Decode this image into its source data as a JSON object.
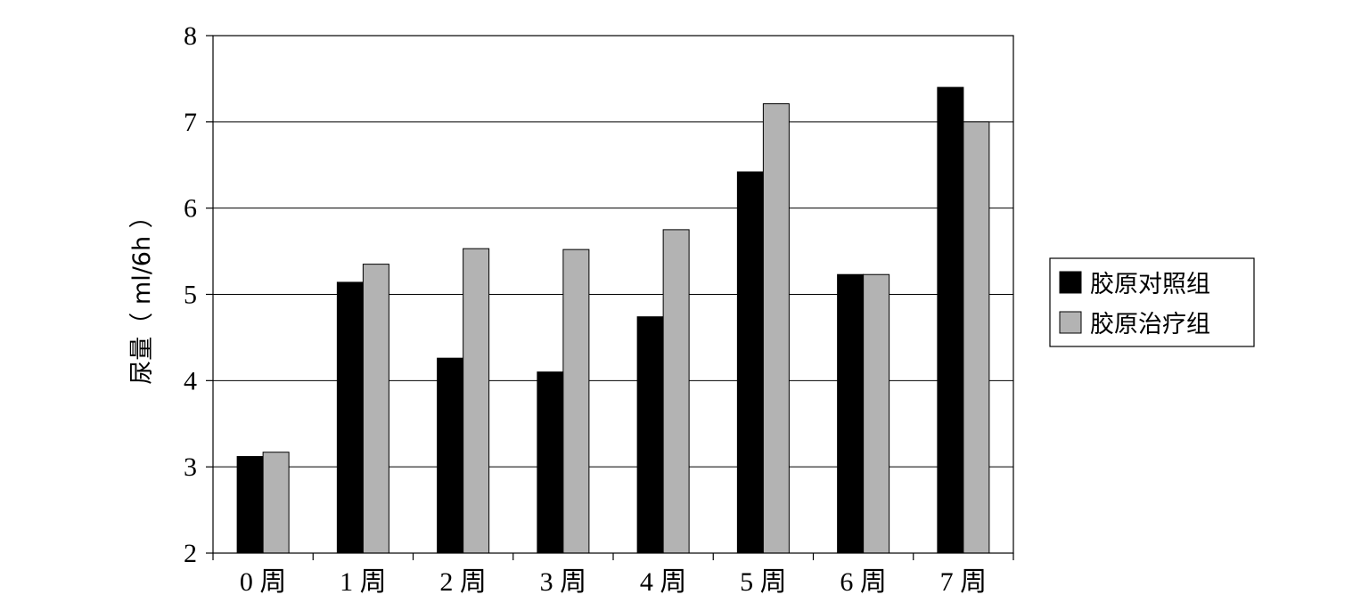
{
  "chart_data": {
    "type": "bar",
    "title": "",
    "xlabel": "",
    "ylabel": "尿量（ ml/6h ）",
    "ylim": [
      2,
      8
    ],
    "yticks": [
      2,
      3,
      4,
      5,
      6,
      7,
      8
    ],
    "grid": true,
    "legend_position": "right",
    "categories": [
      "0 周",
      "1 周",
      "2 周",
      "3 周",
      "4 周",
      "5 周",
      "6 周",
      "7 周"
    ],
    "series": [
      {
        "name": "胶原对照组",
        "color": "#000000",
        "values": [
          3.12,
          5.14,
          4.26,
          4.1,
          4.74,
          6.42,
          5.23,
          7.4
        ]
      },
      {
        "name": "胶原治疗组",
        "color": "#b3b3b3",
        "values": [
          3.17,
          5.35,
          5.53,
          5.52,
          5.75,
          7.21,
          5.23,
          7.0
        ]
      }
    ]
  }
}
